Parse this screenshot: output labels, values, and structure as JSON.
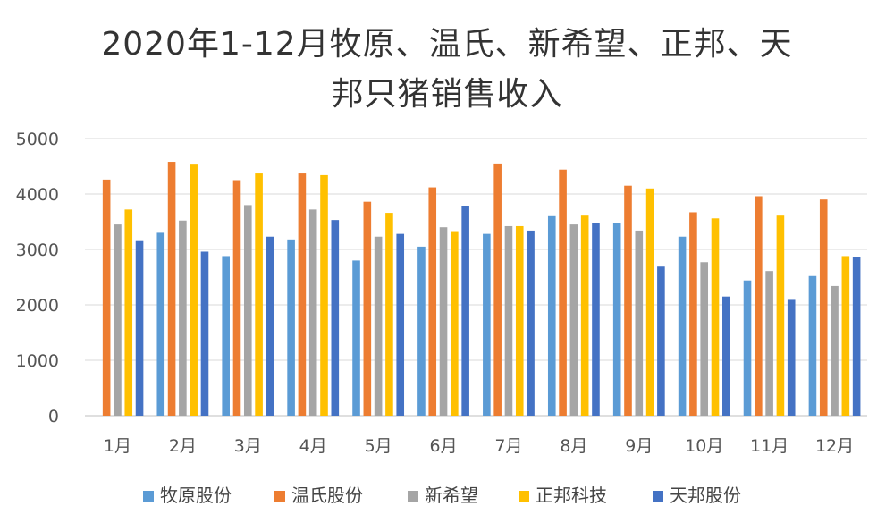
{
  "chart_data": {
    "type": "bar",
    "title_lines": [
      "2020年1-12月牧原、温氏、新希望、正邦、天",
      "邦只猪销售收入"
    ],
    "xlabel": "",
    "ylabel": "",
    "ylim": [
      0,
      5000
    ],
    "yticks": [
      0,
      1000,
      2000,
      3000,
      4000,
      5000
    ],
    "grid": true,
    "legend_position": "bottom",
    "categories": [
      "1月",
      "2月",
      "3月",
      "4月",
      "5月",
      "6月",
      "7月",
      "8月",
      "9月",
      "10月",
      "11月",
      "12月"
    ],
    "series": [
      {
        "name": "牧原股份",
        "color": "#5B9BD5",
        "values": [
          0,
          3300,
          2880,
          3180,
          2800,
          3050,
          3280,
          3600,
          3470,
          3230,
          2440,
          2520
        ]
      },
      {
        "name": "温氏股份",
        "color": "#ED7D31",
        "values": [
          4260,
          4580,
          4250,
          4370,
          3860,
          4120,
          4550,
          4440,
          4150,
          3670,
          3960,
          3900
        ]
      },
      {
        "name": "新希望",
        "color": "#A5A5A5",
        "values": [
          3450,
          3520,
          3800,
          3720,
          3230,
          3400,
          3420,
          3450,
          3340,
          2770,
          2610,
          2340
        ]
      },
      {
        "name": "正邦科技",
        "color": "#FFC000",
        "values": [
          3720,
          4530,
          4370,
          4340,
          3660,
          3330,
          3420,
          3610,
          4100,
          3560,
          3610,
          2880
        ]
      },
      {
        "name": "天邦股份",
        "color": "#4472C4",
        "values": [
          3150,
          2960,
          3230,
          3530,
          3280,
          3780,
          3340,
          3480,
          2690,
          2150,
          2090,
          2870
        ]
      }
    ]
  }
}
